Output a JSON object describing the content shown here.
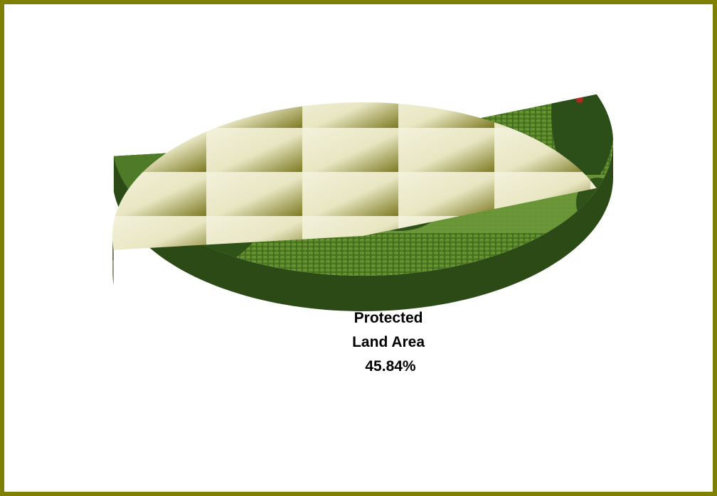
{
  "chart_data": {
    "type": "pie",
    "style": "3d-exploded",
    "title": "",
    "slices": [
      {
        "name": "Protected Land Area",
        "value": 45.84,
        "label_lines": [
          "Protected",
          "Land Area",
          "45.84%"
        ],
        "fill": "patterned-cream",
        "explode": true
      },
      {
        "name": "",
        "value": 54.16,
        "label_lines": [],
        "fill": "garden-photo",
        "explode": false
      }
    ],
    "legend": "none"
  },
  "colors": {
    "frame": "#808000",
    "cream": "#ecebd0",
    "olive": "#6b6a1c",
    "side_gray": "#6e6d5e",
    "grass": "#5d8a2c",
    "foliage": "#2e4f1a"
  }
}
